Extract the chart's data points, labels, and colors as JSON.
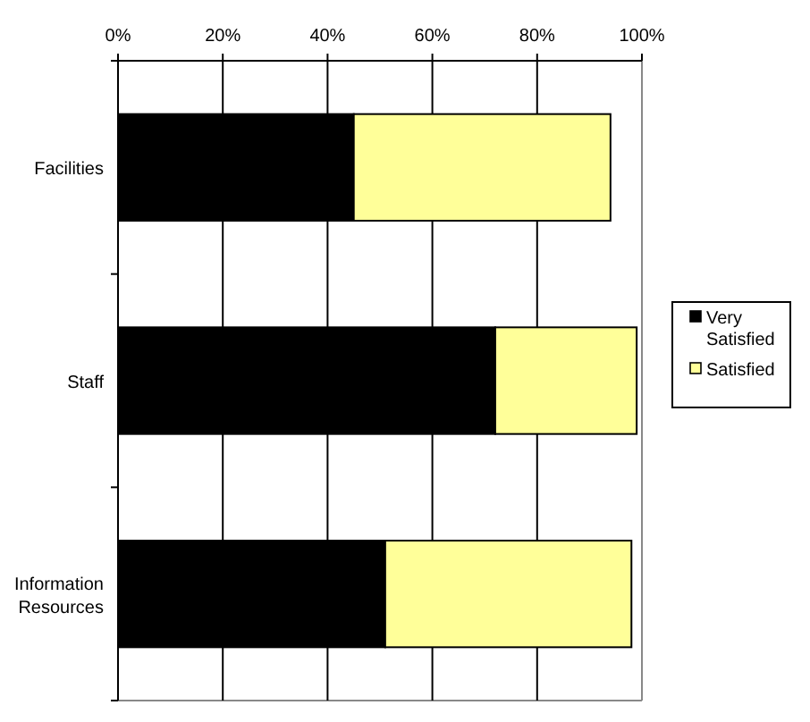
{
  "chart_data": {
    "type": "bar",
    "orientation": "horizontal",
    "stacked": true,
    "categories": [
      "Facilities",
      "Staff",
      "Information Resources"
    ],
    "series": [
      {
        "name": "Very Satisfied",
        "color": "#000000",
        "values": [
          45,
          72,
          51
        ]
      },
      {
        "name": "Satisfied",
        "color": "#ffff99",
        "values": [
          49,
          27,
          47
        ]
      }
    ],
    "xlim": [
      0,
      100
    ],
    "xticks": [
      {
        "value": 0,
        "label": "0%"
      },
      {
        "value": 20,
        "label": "20%"
      },
      {
        "value": 40,
        "label": "40%"
      },
      {
        "value": 60,
        "label": "60%"
      },
      {
        "value": 80,
        "label": "80%"
      },
      {
        "value": 100,
        "label": "100%"
      }
    ],
    "grid": "x",
    "legend": "right"
  }
}
